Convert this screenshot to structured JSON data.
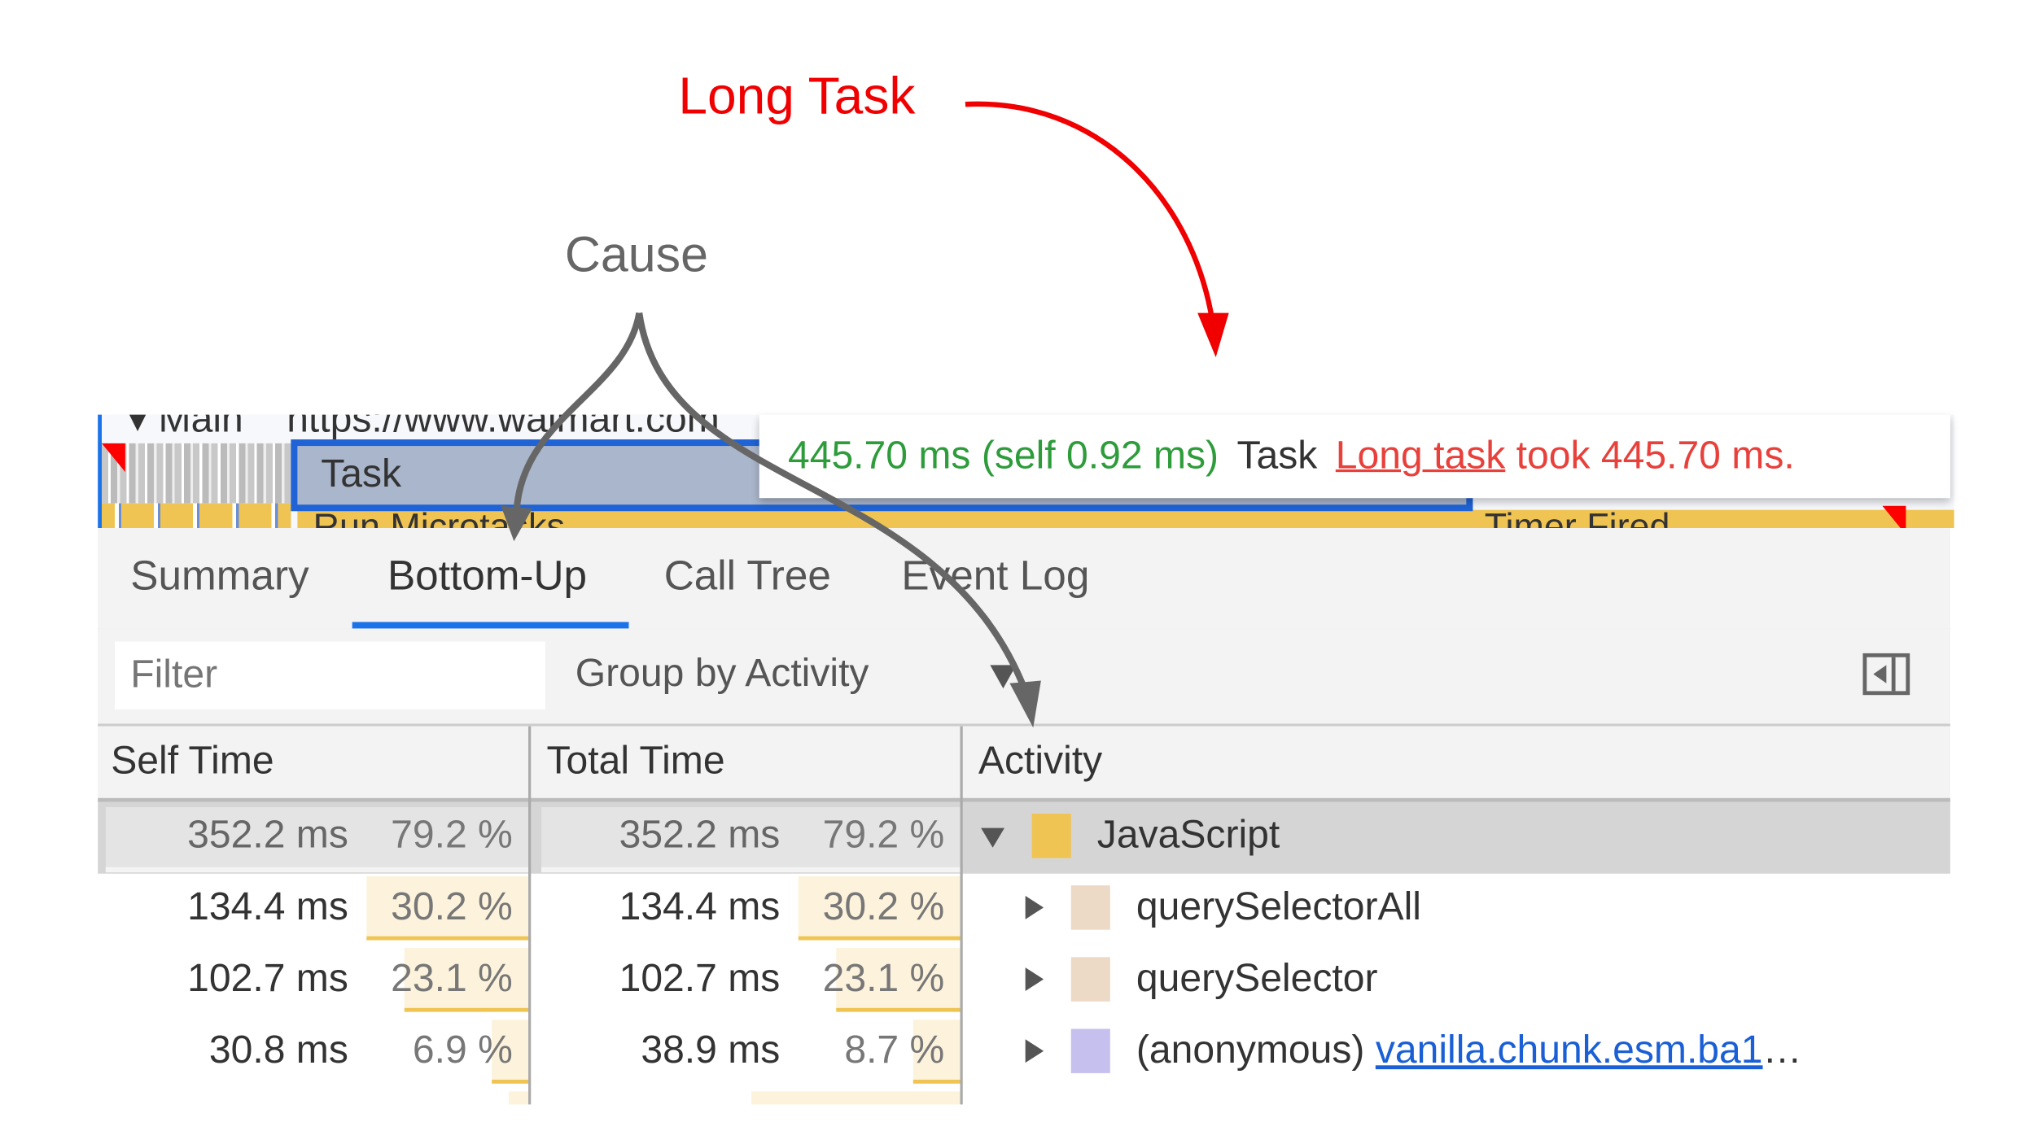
{
  "annotations": {
    "long_task": "Long Task",
    "cause": "Cause",
    "long_task_color": "#f00000",
    "cause_color": "#666666"
  },
  "flame": {
    "main_label": "▾ Main",
    "url": "https://www.walmart.com",
    "task_label": "Task",
    "child_label": "Run Microtasks",
    "timer_label": "Timer Fired"
  },
  "tooltip": {
    "duration": "445.70 ms (self 0.92 ms)",
    "name": "Task",
    "warning_link": "Long task",
    "warning_text": " took 445.70 ms."
  },
  "tabs": [
    {
      "label": "Summary"
    },
    {
      "label": "Bottom-Up",
      "selected": true
    },
    {
      "label": "Call Tree"
    },
    {
      "label": "Event Log"
    }
  ],
  "toolbar": {
    "filter_placeholder": "Filter",
    "group_by": "Group by Activity"
  },
  "table": {
    "headers": {
      "self": "Self Time",
      "total": "Total Time",
      "activity": "Activity"
    },
    "rows": [
      {
        "self_ms": "352.2 ms",
        "self_pct": "79.2 %",
        "self_val": 79.2,
        "total_ms": "352.2 ms",
        "total_pct": "79.2 %",
        "total_val": 79.2,
        "activity": "JavaScript",
        "color": "#f0c453",
        "expanded": true,
        "selected": true
      },
      {
        "self_ms": "134.4 ms",
        "self_pct": "30.2 %",
        "self_val": 30.2,
        "total_ms": "134.4 ms",
        "total_pct": "30.2 %",
        "total_val": 30.2,
        "activity": "querySelectorAll",
        "color": "#ecd9c6"
      },
      {
        "self_ms": "102.7 ms",
        "self_pct": "23.1 %",
        "self_val": 23.1,
        "total_ms": "102.7 ms",
        "total_pct": "23.1 %",
        "total_val": 23.1,
        "activity": "querySelector",
        "color": "#ecd9c6"
      },
      {
        "self_ms": "30.8 ms",
        "self_pct": "6.9 %",
        "self_val": 6.9,
        "total_ms": "38.9 ms",
        "total_pct": "8.7 %",
        "total_val": 8.7,
        "activity": "(anonymous)",
        "link": "vanilla.chunk.esm.ba1",
        "ellipsis": "…",
        "color": "#c6c0ef"
      }
    ]
  }
}
